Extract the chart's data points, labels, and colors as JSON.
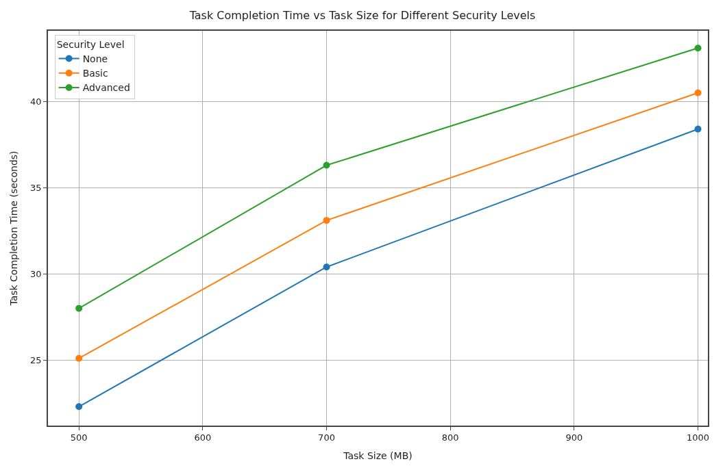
{
  "chart_data": {
    "type": "line",
    "title": "Task Completion Time vs Task Size for Different Security Levels",
    "xlabel": "Task Size (MB)",
    "ylabel": "Task Completion Time (seconds)",
    "legend_title": "Security Level",
    "x": [
      500,
      700,
      1000
    ],
    "series": [
      {
        "name": "None",
        "color": "#1f77b4",
        "values": [
          22.3,
          30.4,
          38.4
        ]
      },
      {
        "name": "Basic",
        "color": "#ff7f0e",
        "values": [
          25.1,
          33.1,
          40.5
        ]
      },
      {
        "name": "Advanced",
        "color": "#2ca02c",
        "values": [
          28.0,
          36.3,
          43.1
        ]
      }
    ],
    "xlim": [
      475,
      1008
    ],
    "ylim": [
      21.2,
      44.1
    ],
    "xticks": [
      500,
      600,
      700,
      800,
      900,
      1000
    ],
    "yticks": [
      25,
      30,
      35,
      40
    ],
    "grid": true,
    "legend": "top left",
    "marker": "circle",
    "line_style": "solid"
  }
}
